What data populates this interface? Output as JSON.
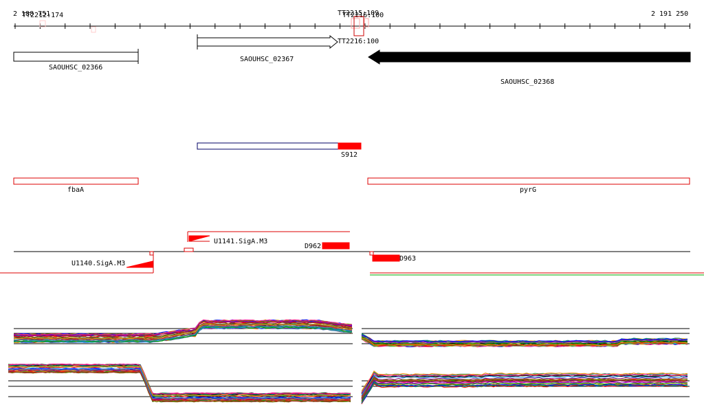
{
  "coords": {
    "start_label": "2 188 751",
    "end_label": "2 191 250"
  },
  "markers": {
    "tt2212": "TT2212:174",
    "tt2215": "TT2215:109",
    "tt2216_top": "TT2216:100",
    "tt2216_arrow": "TT2216:100"
  },
  "genes": [
    {
      "id": "SAOUHSC_02366",
      "label": "SAOUHSC_02366",
      "strand": "none"
    },
    {
      "id": "SAOUHSC_02367",
      "label": "SAOUHSC_02367",
      "strand": "plus"
    },
    {
      "id": "SAOUHSC_02368",
      "label": "SAOUHSC_02368",
      "strand": "minus"
    }
  ],
  "features": {
    "s912": "S912",
    "fbaA": "fbaA",
    "pyrG": "pyrG"
  },
  "promoters": {
    "u1141": "U1141.SigA.M3",
    "u1140": "U1140.SigA.M3",
    "d962": "D962",
    "d963": "D963"
  },
  "colors": {
    "feature_red": "#ff0000",
    "gene_fill_minus": "#000000",
    "gene_fill_plus": "#ffffff",
    "track_green": "#00aa00",
    "track_navy": "#000066"
  },
  "expression": {
    "palette": [
      "#000000",
      "#ff0000",
      "#00a000",
      "#0000ff",
      "#8b4513",
      "#ff8c00",
      "#800080",
      "#808000",
      "#008080",
      "#ff1493",
      "#556b2f",
      "#4682b4",
      "#a52a2a",
      "#daa520",
      "#2e8b57",
      "#9400d3",
      "#696969",
      "#b22222",
      "#32cd32",
      "#1e90ff"
    ]
  }
}
